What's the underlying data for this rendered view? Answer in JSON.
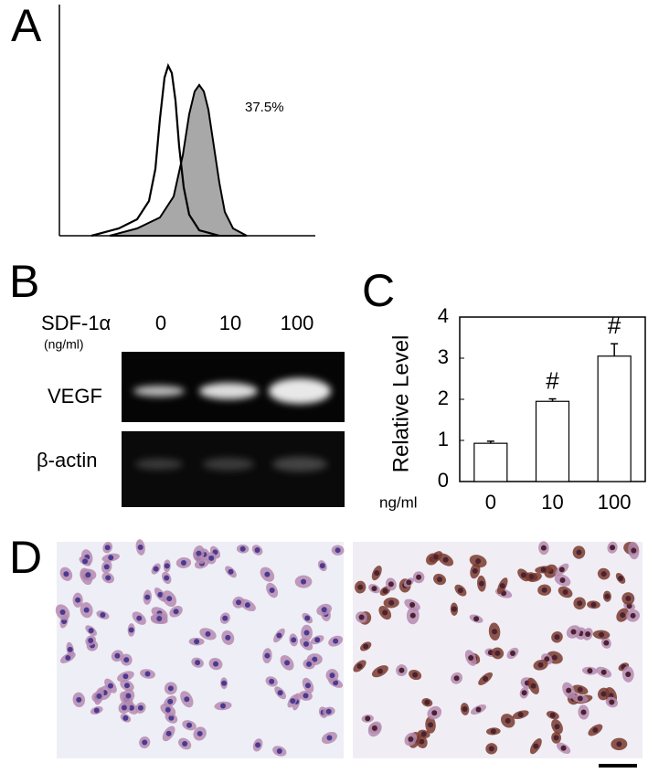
{
  "panel_labels": [
    "A",
    "B",
    "C",
    "D"
  ],
  "flow": {
    "annotation": "37.5%"
  },
  "blot": {
    "treatment": "SDF-1α",
    "unit": "(ng/ml)",
    "doses": [
      "0",
      "10",
      "100"
    ],
    "rows": [
      "VEGF",
      "β-actin"
    ]
  },
  "chart_data": {
    "type": "bar",
    "y_label": "Relative Level",
    "x_label": "ng/ml",
    "categories": [
      "0",
      "10",
      "100"
    ],
    "values": [
      0.93,
      1.95,
      3.05
    ],
    "errors": [
      0.05,
      0.06,
      0.3
    ],
    "significance": [
      null,
      "#",
      "#"
    ],
    "color": "#ffffff",
    "edge_color": "#000000",
    "ylim": [
      0,
      4
    ],
    "yticks": [
      0,
      1,
      2,
      3,
      4
    ],
    "grid": false
  }
}
